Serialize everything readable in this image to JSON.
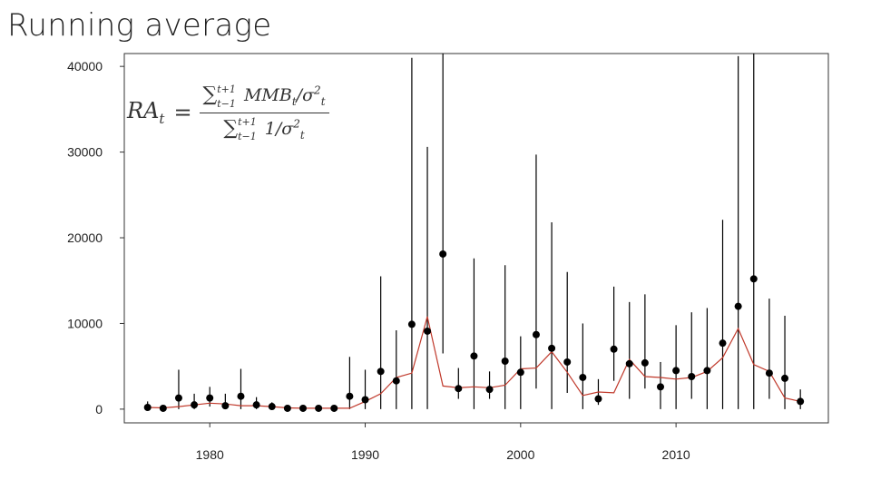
{
  "slide": {
    "title": "Running average"
  },
  "formula": {
    "lhs": "RA",
    "lhs_sub": "t",
    "equals": "=",
    "sum_symbol": "∑",
    "sum_upper": "t+1",
    "sum_lower": "t−1",
    "numerator_term": "MMB",
    "numerator_term_sub": "t",
    "slash": "/",
    "sigma": "σ",
    "sigma_sub": "t",
    "sigma_sup": "2",
    "denominator_term": "1/"
  },
  "colors": {
    "points": "#000000",
    "running_average": "#c0392b",
    "axis": "#333333"
  },
  "chart_data": {
    "type": "scatter",
    "title": "",
    "xlabel": "",
    "ylabel": "",
    "xlim": [
      1974.5,
      2019.8
    ],
    "ylim": [
      -1600,
      41500
    ],
    "grid": false,
    "legend": "none",
    "x_ticks": [
      1980,
      1990,
      2000,
      2010
    ],
    "x_tick_labels": [
      "1980",
      "1990",
      "2000",
      "2010"
    ],
    "y_ticks": [
      0,
      10000,
      20000,
      30000,
      40000
    ],
    "y_tick_labels": [
      "0",
      "10000",
      "20000",
      "30000",
      "40000"
    ],
    "series": [
      {
        "kind": "points_with_error_bars",
        "x": [
          1976,
          1977,
          1978,
          1979,
          1980,
          1981,
          1982,
          1983,
          1984,
          1985,
          1986,
          1987,
          1988,
          1989,
          1990,
          1991,
          1992,
          1993,
          1994,
          1995,
          1996,
          1997,
          1998,
          1999,
          2000,
          2001,
          2002,
          2003,
          2004,
          2005,
          2006,
          2007,
          2008,
          2009,
          2010,
          2011,
          2012,
          2013,
          2014,
          2015,
          2016,
          2017,
          2018
        ],
        "y": [
          200,
          100,
          1300,
          500,
          1300,
          400,
          1500,
          500,
          300,
          100,
          100,
          100,
          100,
          1500,
          1100,
          4400,
          3300,
          9900,
          9100,
          18100,
          2400,
          6200,
          2300,
          5600,
          4300,
          8700,
          7100,
          5500,
          3700,
          1200,
          7000,
          5300,
          5400,
          2600,
          4500,
          3800,
          4500,
          7700,
          12000,
          15200,
          4200,
          3600,
          900
        ],
        "y_low": [
          0,
          0,
          0,
          0,
          300,
          0,
          0,
          0,
          0,
          0,
          0,
          0,
          0,
          0,
          0,
          0,
          0,
          0,
          0,
          6500,
          1200,
          0,
          1200,
          0,
          0,
          2400,
          0,
          1900,
          0,
          500,
          3300,
          1200,
          2400,
          0,
          0,
          1200,
          0,
          0,
          0,
          0,
          1200,
          0,
          0
        ],
        "y_high": [
          900,
          400,
          4600,
          1800,
          2600,
          1800,
          4700,
          1400,
          800,
          400,
          300,
          300,
          300,
          6100,
          4600,
          15500,
          9200,
          41000,
          30600,
          41500,
          4800,
          17600,
          4400,
          16800,
          8500,
          29700,
          21800,
          16000,
          10000,
          3500,
          14300,
          12500,
          13400,
          5500,
          9800,
          11300,
          11800,
          22100,
          41200,
          41500,
          12900,
          10900,
          2300
        ]
      },
      {
        "kind": "line",
        "name": "",
        "x": [
          1976,
          1977,
          1978,
          1979,
          1980,
          1981,
          1982,
          1983,
          1984,
          1985,
          1986,
          1987,
          1988,
          1989,
          1990,
          1991,
          1992,
          1993,
          1994,
          1995,
          1996,
          1997,
          1998,
          1999,
          2000,
          2001,
          2002,
          2003,
          2004,
          2005,
          2006,
          2007,
          2008,
          2009,
          2010,
          2011,
          2012,
          2013,
          2014,
          2015,
          2016,
          2017,
          2018
        ],
        "y": [
          200,
          150,
          300,
          500,
          700,
          600,
          400,
          400,
          300,
          150,
          100,
          100,
          100,
          100,
          900,
          1800,
          3700,
          4200,
          10800,
          2700,
          2500,
          2600,
          2500,
          2800,
          4700,
          4800,
          6700,
          4300,
          1600,
          2000,
          1900,
          5800,
          3800,
          3700,
          3500,
          3700,
          4400,
          6000,
          9400,
          5200,
          4400,
          1300,
          900
        ]
      }
    ]
  }
}
